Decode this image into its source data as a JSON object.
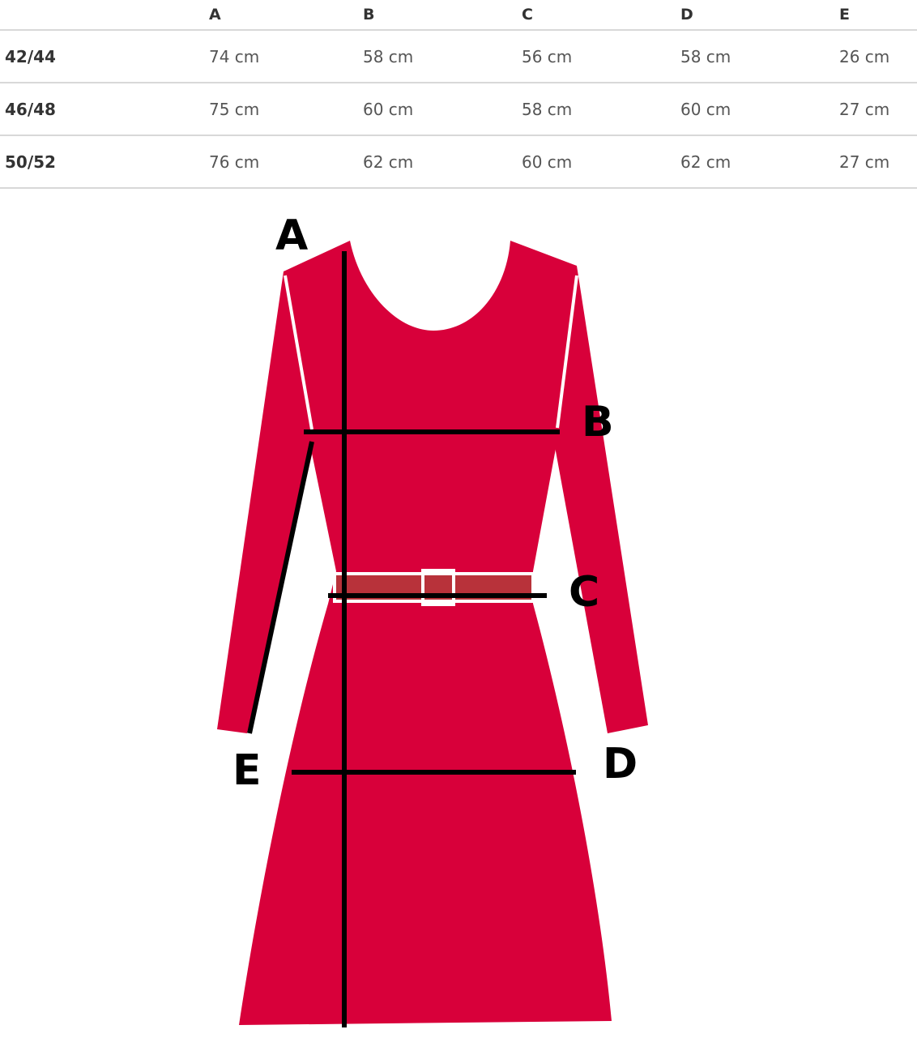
{
  "table": {
    "headers": [
      "",
      "A",
      "B",
      "C",
      "D",
      "E"
    ],
    "rows": [
      {
        "size": "42/44",
        "values": [
          "74 cm",
          "58 cm",
          "56 cm",
          "58 cm",
          "26 cm"
        ]
      },
      {
        "size": "46/48",
        "values": [
          "75 cm",
          "60 cm",
          "58 cm",
          "60 cm",
          "27 cm"
        ]
      },
      {
        "size": "50/52",
        "values": [
          "76 cm",
          "62 cm",
          "60 cm",
          "62 cm",
          "27 cm"
        ]
      }
    ]
  },
  "diagram": {
    "labels": {
      "a": "A",
      "b": "B",
      "c": "C",
      "d": "D",
      "e": "E"
    },
    "colors": {
      "dress": "#d8003a",
      "belt": "#b8323a",
      "lines": "#000000"
    }
  }
}
